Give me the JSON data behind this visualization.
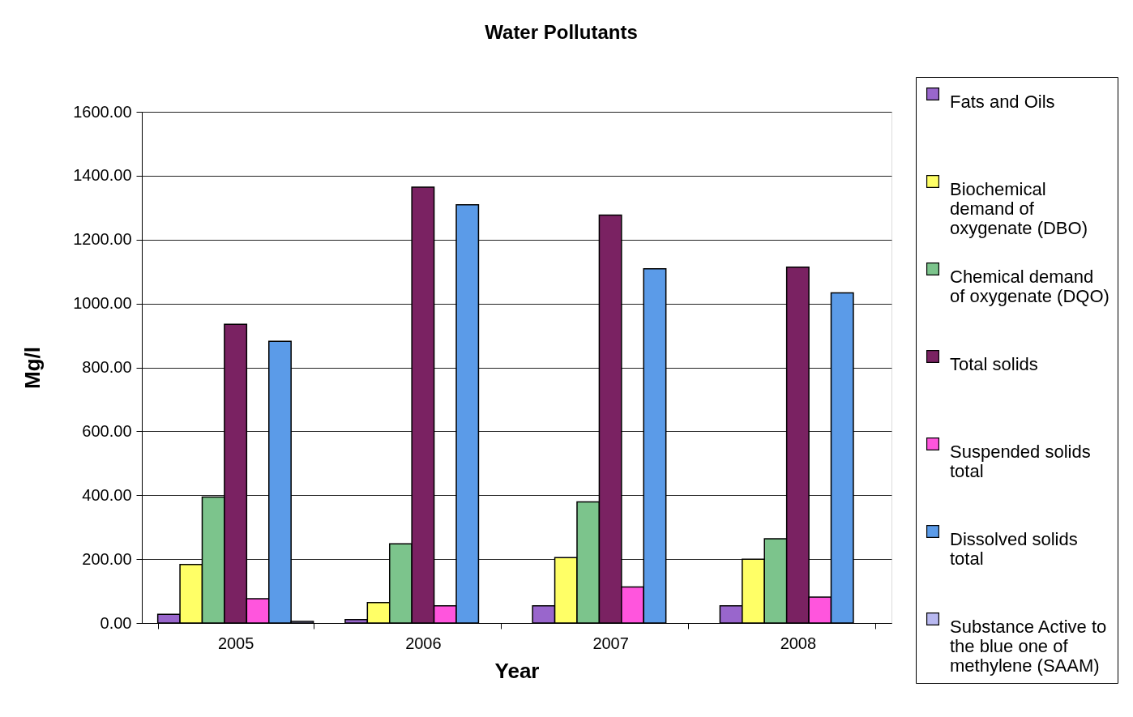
{
  "chart_data": {
    "type": "bar",
    "title": "Water Pollutants",
    "xlabel": "Year",
    "ylabel": "Mg/l",
    "categories": [
      "2005",
      "2006",
      "2007",
      "2008"
    ],
    "series": [
      {
        "name": "Fats and Oils",
        "color": "#9966cc",
        "values": [
          27,
          11,
          54,
          54
        ]
      },
      {
        "name": "Biochemical demand of oxygenate (DBO)",
        "color": "#ffff66",
        "values": [
          183,
          64,
          205,
          200
        ]
      },
      {
        "name": "Chemical demand of oxygenate (DQO)",
        "color": "#7cc48c",
        "values": [
          394,
          248,
          379,
          264
        ]
      },
      {
        "name": "Total solids",
        "color": "#7a2262",
        "values": [
          935,
          1364,
          1277,
          1114
        ]
      },
      {
        "name": "Suspended solids total",
        "color": "#ff55dd",
        "values": [
          76,
          54,
          113,
          81
        ]
      },
      {
        "name": "Dissolved solids total",
        "color": "#5b9be8",
        "values": [
          882,
          1309,
          1109,
          1033
        ]
      },
      {
        "name": "Substance Active to the blue one of methylene (SAAM)",
        "color": "#b8b8f0",
        "values": [
          5,
          null,
          null,
          null
        ]
      }
    ],
    "ylim": [
      0,
      1600
    ],
    "yticks": [
      {
        "value": 0,
        "label": "0.00"
      },
      {
        "value": 200,
        "label": "200.00"
      },
      {
        "value": 400,
        "label": "400.00"
      },
      {
        "value": 600,
        "label": "600.00"
      },
      {
        "value": 800,
        "label": "800.00"
      },
      {
        "value": 1000,
        "label": "1000.00"
      },
      {
        "value": 1200,
        "label": "1200.00"
      },
      {
        "value": 1400,
        "label": "1400.00"
      },
      {
        "value": 1600,
        "label": "1600.00"
      }
    ],
    "grid": "y",
    "legend": "right"
  }
}
